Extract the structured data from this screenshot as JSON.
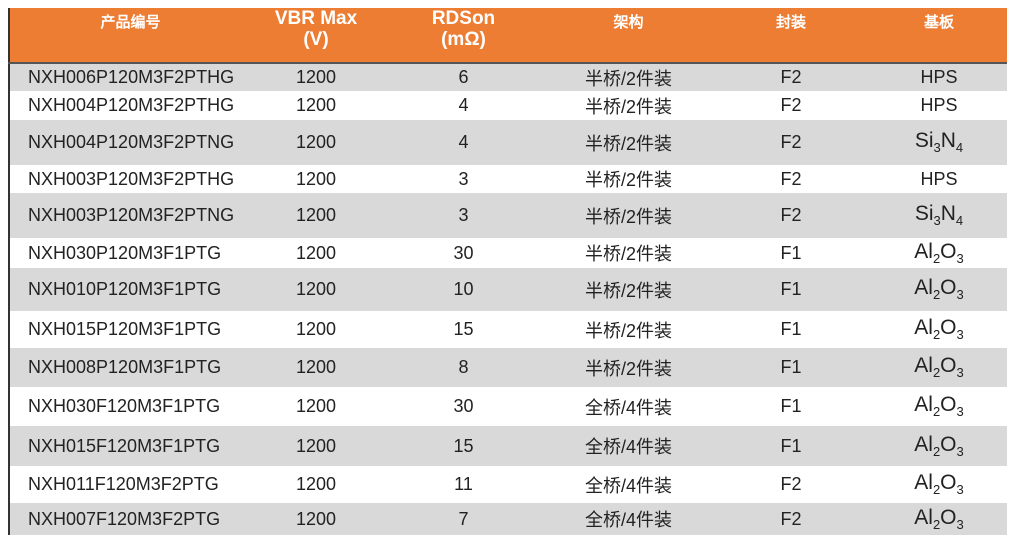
{
  "header": {
    "columns": [
      "产品编号",
      "VBR Max\n(V)",
      "RDSon\n(mΩ)",
      "架构",
      "封装",
      "基板"
    ],
    "header_color": "#ec7d33"
  },
  "rows": [
    [
      "NXH006P120M3F2PTHG",
      "1200",
      "6",
      "半桥/2件装",
      "F2",
      "HPS"
    ],
    [
      "NXH004P120M3F2PTHG",
      "1200",
      "4",
      "半桥/2件装",
      "F2",
      "HPS"
    ],
    [
      "NXH004P120M3F2PTNG",
      "1200",
      "4",
      "半桥/2件装",
      "F2",
      "Si3N4"
    ],
    [
      "NXH003P120M3F2PTHG",
      "1200",
      "3",
      "半桥/2件装",
      "F2",
      "HPS"
    ],
    [
      "NXH003P120M3F2PTNG",
      "1200",
      "3",
      "半桥/2件装",
      "F2",
      "Si3N4"
    ],
    [
      "NXH030P120M3F1PTG",
      "1200",
      "30",
      "半桥/2件装",
      "F1",
      "Al2O3"
    ],
    [
      "NXH010P120M3F1PTG",
      "1200",
      "10",
      "半桥/2件装",
      "F1",
      "Al2O3"
    ],
    [
      "NXH015P120M3F1PTG",
      "1200",
      "15",
      "半桥/2件装",
      "F1",
      "Al2O3"
    ],
    [
      "NXH008P120M3F1PTG",
      "1200",
      "8",
      "半桥/2件装",
      "F1",
      "Al2O3"
    ],
    [
      "NXH030F120M3F1PTG",
      "1200",
      "30",
      "全桥/4件装",
      "F1",
      "Al2O3"
    ],
    [
      "NXH015F120M3F1PTG",
      "1200",
      "15",
      "全桥/4件装",
      "F1",
      "Al2O3"
    ],
    [
      "NXH011F120M3F2PTG",
      "1200",
      "11",
      "全桥/4件装",
      "F2",
      "Al2O3"
    ],
    [
      "NXH007F120M3F2PTG",
      "1200",
      "7",
      "全桥/4件装",
      "F2",
      "Al2O3"
    ]
  ]
}
